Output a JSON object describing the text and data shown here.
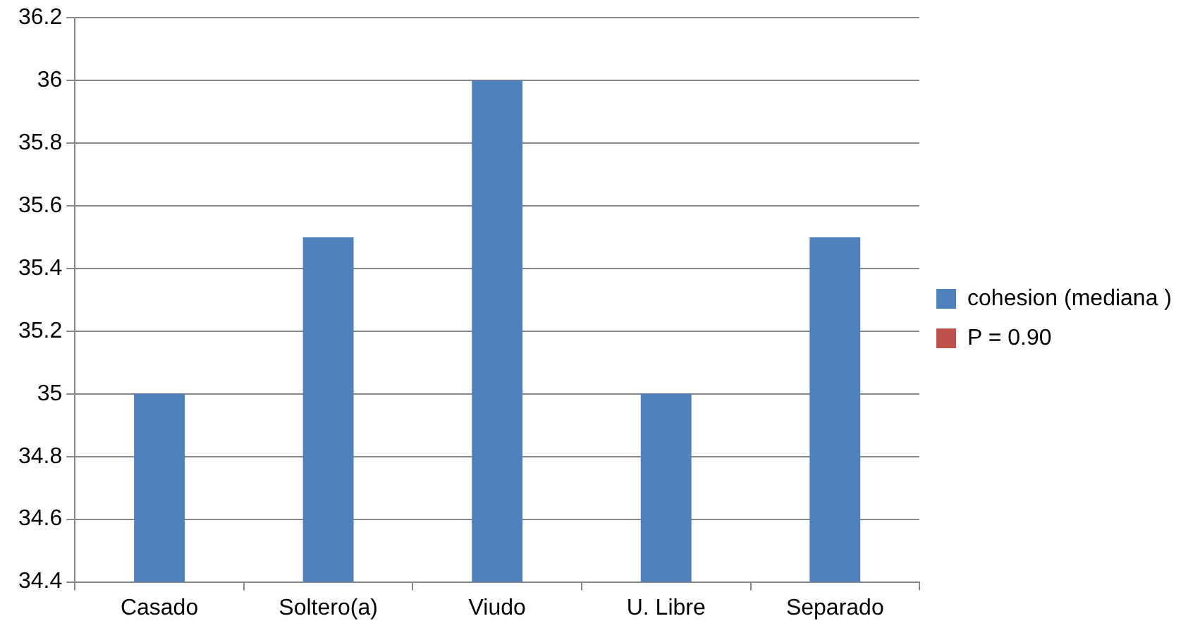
{
  "chart_data": {
    "type": "bar",
    "categories": [
      "Casado",
      "Soltero(a)",
      "Viudo",
      "U. Libre",
      "Separado"
    ],
    "series": [
      {
        "name": "cohesion (mediana )",
        "color": "#4f81bd",
        "values": [
          35,
          35.5,
          36,
          35,
          35.5
        ]
      },
      {
        "name": "P = 0.90",
        "color": "#c0504d",
        "values": [
          null,
          null,
          null,
          null,
          null
        ]
      }
    ],
    "ylim": [
      34.4,
      36.2
    ],
    "yticks": [
      34.4,
      34.6,
      34.8,
      35,
      35.2,
      35.4,
      35.6,
      35.8,
      36,
      36.2
    ],
    "grid": "y",
    "legend": "right"
  }
}
